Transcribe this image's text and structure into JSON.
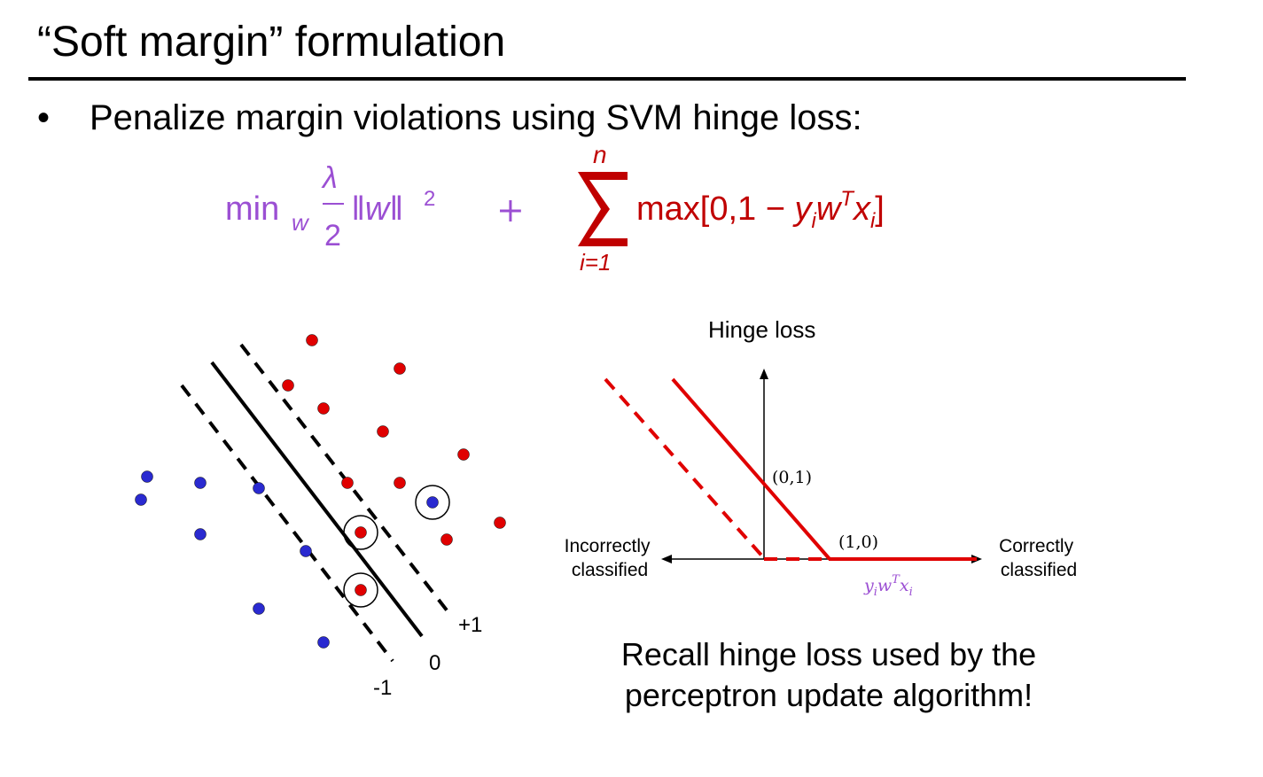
{
  "slide": {
    "title": "“Soft margin” formulation",
    "bullet_symbol": "•",
    "bullet_text": "Penalize margin violations using SVM hinge loss:"
  },
  "formula": {
    "regularizer": {
      "min": "min",
      "min_subscript": "w",
      "lambda": "λ",
      "denominator": "2",
      "norm": "‖w‖",
      "norm_exponent": "2",
      "color": "#9b4fd3"
    },
    "plus": "+",
    "loss": {
      "sum_symbol": "∑",
      "sum_upper": "n",
      "sum_lower": "i=1",
      "body_prefix": "max[0,1 − ",
      "y": "y",
      "y_sub": "i",
      "w": "w",
      "w_sup": "T",
      "x": "x",
      "x_sub": "i",
      "body_suffix": "]",
      "color": "#c00000"
    }
  },
  "margin_diagram": {
    "line_labels": {
      "plus_one": "+1",
      "zero": "0",
      "minus_one": "-1"
    },
    "colors": {
      "positive": "#e00000",
      "negative": "#2a2ad0",
      "lines": "#000000"
    }
  },
  "hinge_plot": {
    "title": "Hinge loss",
    "left_label": [
      "Incorrectly",
      "classified"
    ],
    "right_label": [
      "Correctly",
      "classified"
    ],
    "point_0_1": "(0,1)",
    "point_1_0": "(1,0)",
    "x_var": {
      "y": "y",
      "y_sub": "i",
      "w": "w",
      "w_sup": "T",
      "x": "x",
      "x_sub": "i"
    },
    "colors": {
      "loss_line": "#e00000",
      "axes": "#000000",
      "x_var": "#9b4fd3"
    }
  },
  "recall": {
    "line1": "Recall hinge loss used by the",
    "line2": "perceptron update algorithm!"
  }
}
